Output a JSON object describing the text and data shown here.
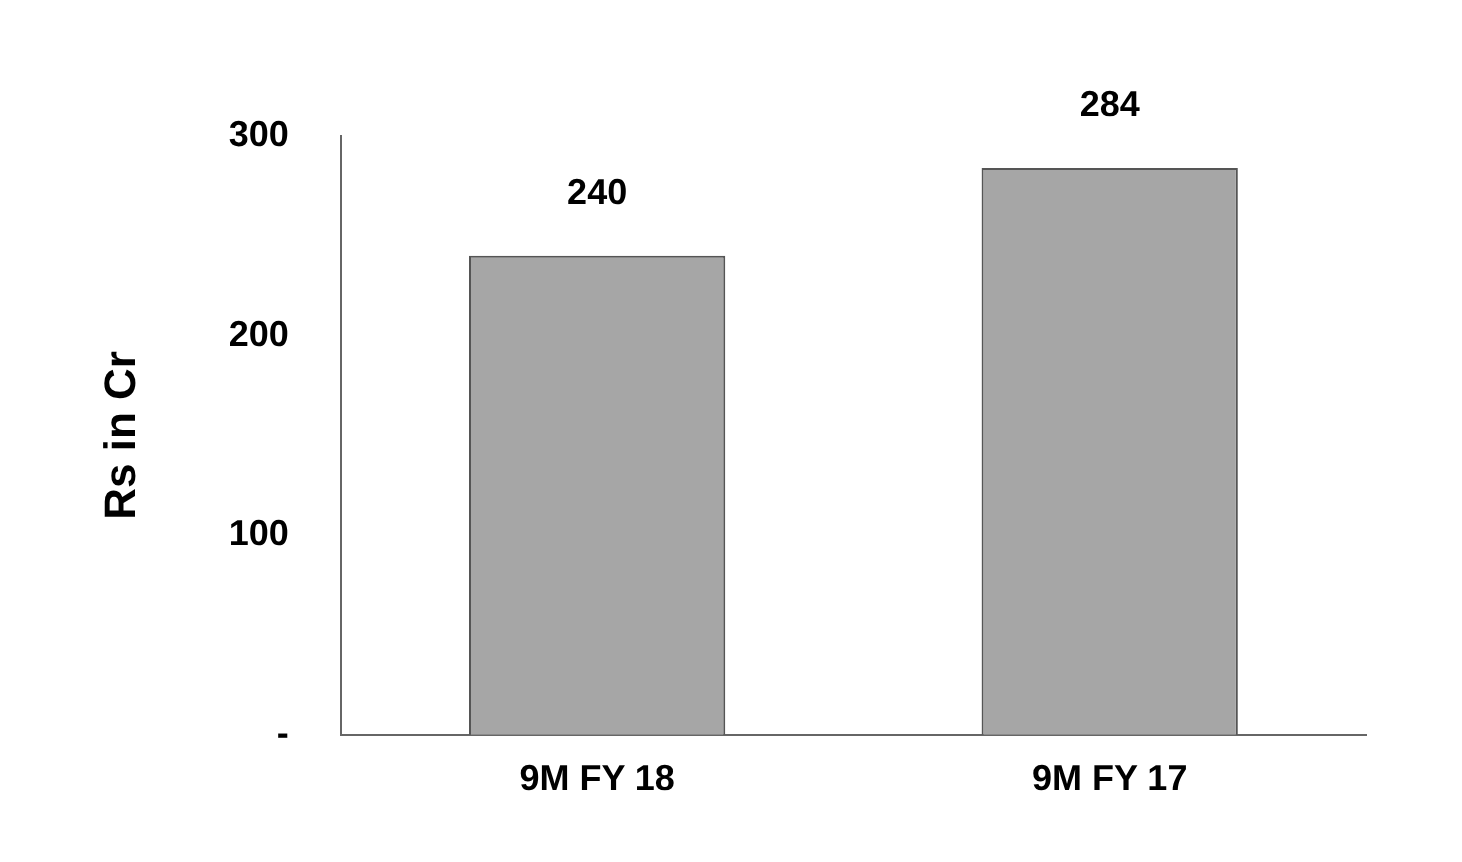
{
  "chart_data": {
    "type": "bar",
    "ylabel": "Rs in Cr",
    "categories": [
      "9M FY 18",
      "9M FY 17"
    ],
    "values": [
      240,
      284
    ],
    "color": "#a6a6a6",
    "ylim": [
      0,
      300
    ],
    "yticks": [
      {
        "value": 0,
        "label": "-"
      },
      100,
      200,
      300
    ],
    "data_labels": true,
    "grid": false,
    "legend": false
  }
}
